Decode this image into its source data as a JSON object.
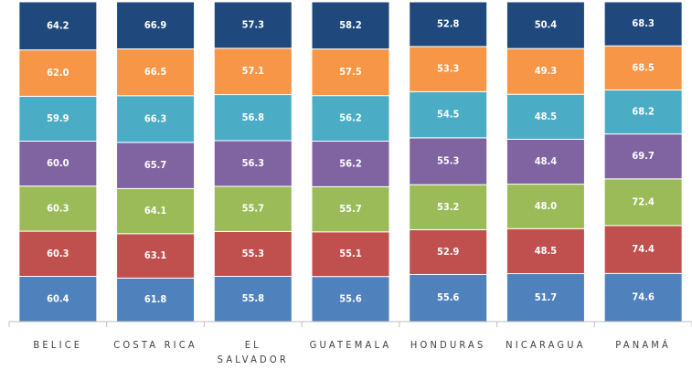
{
  "chart_data": {
    "type": "bar",
    "stacking": "percent",
    "categories": [
      "BELICE",
      "COSTA RICA",
      "EL SALVADOR",
      "GUATEMALA",
      "HONDURAS",
      "NICARAGUA",
      "PANAMÁ"
    ],
    "series": [
      {
        "color": "#4f81bd",
        "values": [
          60.4,
          61.8,
          55.8,
          55.6,
          55.6,
          51.7,
          74.6
        ],
        "value_labels": [
          "60.4",
          "61.8",
          "55.8",
          "55.6",
          "55.6",
          "51.7",
          "74.6"
        ]
      },
      {
        "color": "#c0504d",
        "values": [
          60.3,
          63.1,
          55.3,
          55.1,
          52.9,
          48.5,
          74.4
        ],
        "value_labels": [
          "60.3",
          "63.1",
          "55.3",
          "55.1",
          "52.9",
          "48.5",
          "74.4"
        ]
      },
      {
        "color": "#9bbb59",
        "values": [
          60.3,
          64.1,
          55.7,
          55.7,
          53.2,
          48.0,
          72.4
        ],
        "value_labels": [
          "60.3",
          "64.1",
          "55.7",
          "55.7",
          "53.2",
          "48.0",
          "72.4"
        ]
      },
      {
        "color": "#8064a2",
        "values": [
          60.0,
          65.7,
          56.3,
          56.2,
          55.3,
          48.4,
          69.7
        ],
        "value_labels": [
          "60.0",
          "65.7",
          "56.3",
          "56.2",
          "55.3",
          "48.4",
          "69.7"
        ]
      },
      {
        "color": "#4bacc6",
        "values": [
          59.9,
          66.3,
          56.8,
          56.2,
          54.5,
          48.5,
          68.2
        ],
        "value_labels": [
          "59.9",
          "66.3",
          "56.8",
          "56.2",
          "54.5",
          "48.5",
          "68.2"
        ]
      },
      {
        "color": "#f79646",
        "values": [
          62.0,
          66.5,
          57.1,
          57.5,
          53.3,
          49.3,
          68.5
        ],
        "value_labels": [
          "62.0",
          "66.5",
          "57.1",
          "57.5",
          "53.3",
          "49.3",
          "68.5"
        ]
      },
      {
        "color": "#1f497d",
        "values": [
          64.2,
          66.9,
          57.3,
          58.2,
          52.8,
          50.4,
          68.3
        ],
        "value_labels": [
          "64.2",
          "66.9",
          "57.3",
          "58.2",
          "52.8",
          "50.4",
          "68.3"
        ]
      }
    ]
  }
}
